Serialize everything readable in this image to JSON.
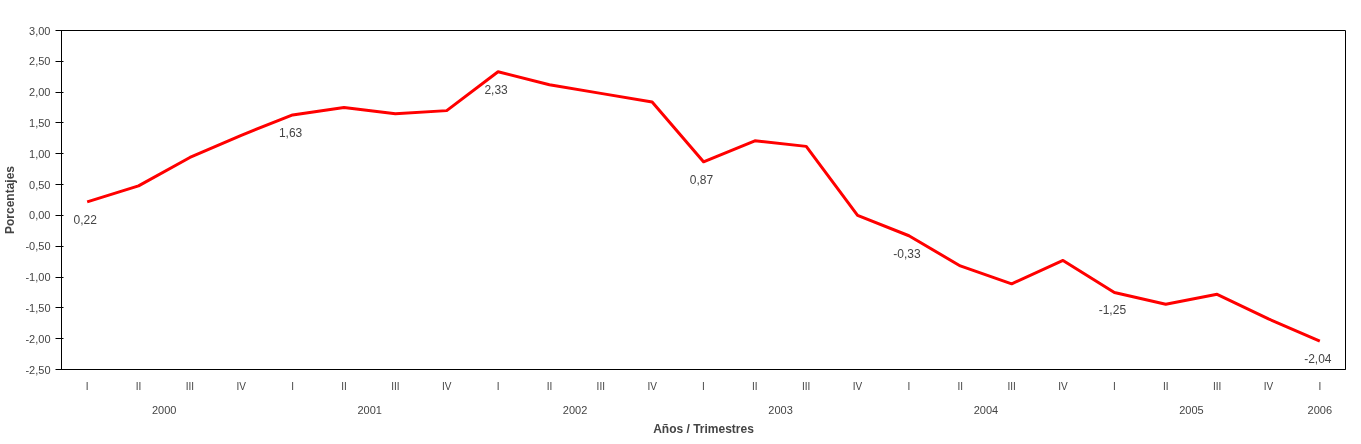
{
  "chart_data": {
    "type": "line",
    "xlabel": "Años / Trimestres",
    "ylabel": "Porcentajes",
    "categories": [
      "I",
      "II",
      "III",
      "IV",
      "I",
      "II",
      "III",
      "IV",
      "I",
      "II",
      "III",
      "IV",
      "I",
      "II",
      "III",
      "IV",
      "I",
      "II",
      "III",
      "IV",
      "I",
      "II",
      "III",
      "IV",
      "I"
    ],
    "annotations": [
      "2000",
      "2001",
      "2002",
      "2003",
      "2004",
      "2005",
      "2006"
    ],
    "series": [
      {
        "color": "#ff0000",
        "values": [
          0.22,
          0.48,
          0.94,
          1.3,
          1.63,
          1.75,
          1.65,
          1.7,
          2.33,
          2.12,
          1.98,
          1.84,
          0.87,
          1.21,
          1.12,
          0.0,
          -0.33,
          -0.82,
          -1.11,
          -0.73,
          -1.25,
          -1.44,
          -1.28,
          -1.68,
          -2.04
        ],
        "value_labels": [
          "0,22",
          null,
          null,
          null,
          "1,63",
          null,
          null,
          null,
          "2,33",
          null,
          null,
          null,
          "0,87",
          null,
          null,
          null,
          "-0,33",
          null,
          null,
          null,
          "-1,25",
          null,
          null,
          null,
          "-2,04"
        ]
      }
    ],
    "ylim": [
      -2.5,
      3.0
    ],
    "yticks": [
      {
        "value": -2.5,
        "label": "-2,50"
      },
      {
        "value": -2.0,
        "label": "-2,00"
      },
      {
        "value": -1.5,
        "label": "-1,50"
      },
      {
        "value": -1.0,
        "label": "-1,00"
      },
      {
        "value": -0.5,
        "label": "-0,50"
      },
      {
        "value": 0.0,
        "label": "0,00"
      },
      {
        "value": 0.5,
        "label": "0,50"
      },
      {
        "value": 1.0,
        "label": "1,00"
      },
      {
        "value": 1.5,
        "label": "1,50"
      },
      {
        "value": 2.0,
        "label": "2,00"
      },
      {
        "value": 2.5,
        "label": "2,50"
      },
      {
        "value": 3.0,
        "label": "3,00"
      }
    ],
    "grid": false,
    "line_style": "solid",
    "marker": "none"
  }
}
